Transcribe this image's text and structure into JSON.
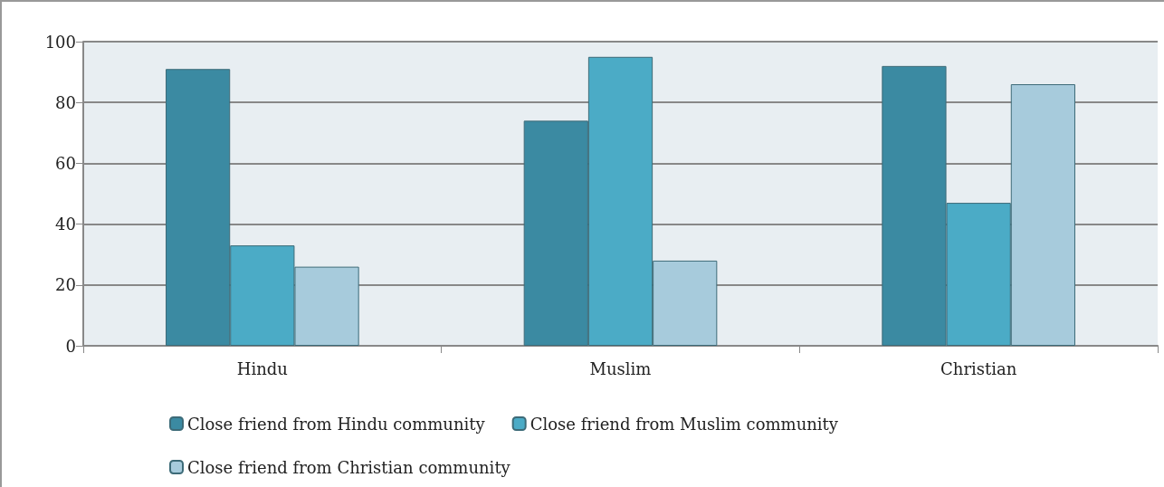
{
  "chart_data": {
    "type": "bar",
    "categories": [
      "Hindu",
      "Muslim",
      "Christian"
    ],
    "series": [
      {
        "name": "Close friend from Hindu community",
        "color": "#3b8aa2",
        "values": [
          91,
          74,
          92
        ]
      },
      {
        "name": "Close friend from Muslim community",
        "color": "#4babc6",
        "values": [
          33,
          95,
          47
        ]
      },
      {
        "name": "Close friend from Christian community",
        "color": "#a7cbdc",
        "values": [
          26,
          28,
          86
        ]
      }
    ],
    "ylim": [
      0,
      100
    ],
    "yticks": [
      0,
      20,
      40,
      60,
      80,
      100
    ],
    "grid": "y",
    "legend": "bottom"
  }
}
